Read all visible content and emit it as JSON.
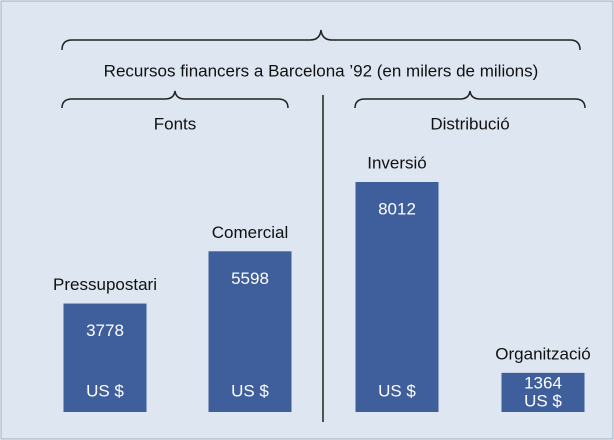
{
  "chart_data": {
    "type": "bar",
    "title": "Recursos financers a Barcelona ’92 (en milers de milions)",
    "unit": "US $",
    "color": "#3f5e9c",
    "groups": [
      {
        "label": "Fonts",
        "categories": [
          "Pressupostari",
          "Comercial"
        ],
        "values": [
          3778,
          5598
        ]
      },
      {
        "label": "Distribució",
        "categories": [
          "Inversió",
          "Organització"
        ],
        "values": [
          8012,
          1364
        ]
      }
    ]
  }
}
